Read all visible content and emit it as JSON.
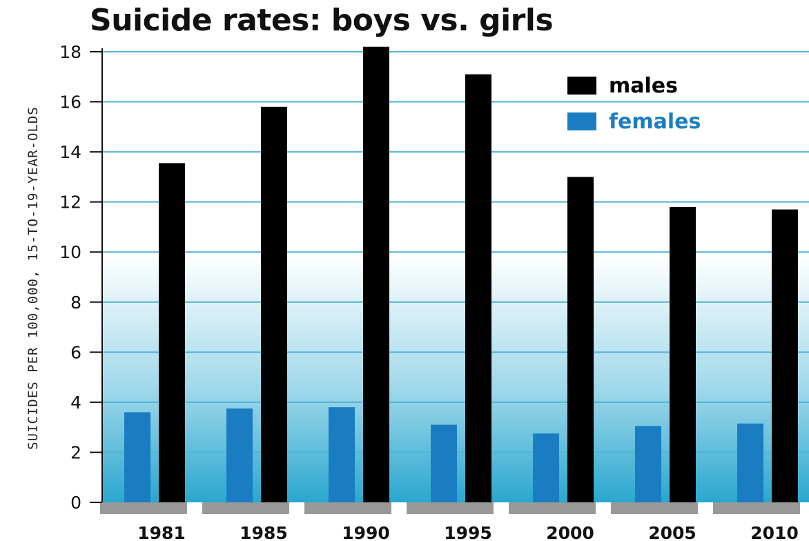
{
  "chart_data": {
    "type": "bar",
    "title": "Suicide rates: boys vs. girls",
    "xlabel": "",
    "ylabel": "SUICIDES PER 100,000, 15-TO-19-YEAR-OLDS",
    "categories": [
      "1981",
      "1985",
      "1990",
      "1995",
      "2000",
      "2005",
      "2010"
    ],
    "series": [
      {
        "name": "females",
        "color": "#1a7dc1",
        "values": [
          3.6,
          3.75,
          3.8,
          3.1,
          2.75,
          3.05,
          3.15
        ]
      },
      {
        "name": "males",
        "color": "#000000",
        "values": [
          13.55,
          15.8,
          18.2,
          17.1,
          13.0,
          11.8,
          11.7
        ]
      }
    ],
    "ylim": [
      0,
      18
    ],
    "yticks": [
      0,
      2,
      4,
      6,
      8,
      10,
      12,
      14,
      16,
      18
    ],
    "grid": true,
    "legend_position": "top-right",
    "colors": {
      "grid": "#4fb3d6",
      "axis_band": "#999999",
      "background_top": "#ffffff",
      "background_bottom": "#2aa7cf"
    }
  }
}
